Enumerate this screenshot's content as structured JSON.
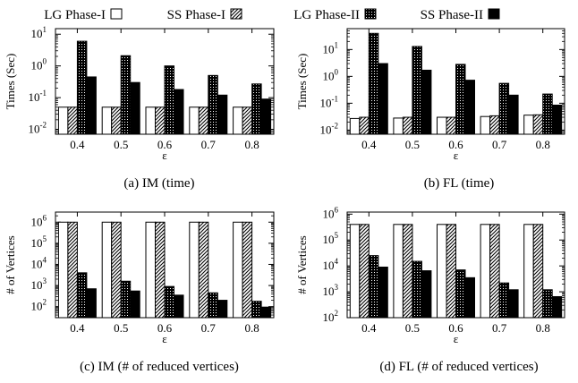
{
  "legend": {
    "entries": [
      {
        "label": "LG Phase-I",
        "pattern": "white"
      },
      {
        "label": "SS Phase-I",
        "pattern": "hatch"
      },
      {
        "label": "LG Phase-II",
        "pattern": "dense"
      },
      {
        "label": "SS Phase-II",
        "pattern": "black"
      }
    ]
  },
  "chart_data": [
    {
      "type": "bar",
      "caption": "(a)  IM (time)",
      "xlabel": "ε",
      "ylabel": "Times (Sec)",
      "yscale": "log",
      "ylim": [
        0.007,
        15
      ],
      "yticks": [
        {
          "v": 0.01,
          "b": "10",
          "e": "-2"
        },
        {
          "v": 0.1,
          "b": "10",
          "e": "-1"
        },
        {
          "v": 1,
          "b": "10",
          "e": "0"
        },
        {
          "v": 10,
          "b": "10",
          "e": "1"
        }
      ],
      "categories": [
        "0.4",
        "0.5",
        "0.6",
        "0.7",
        "0.8"
      ],
      "series": [
        {
          "name": "LG Phase-I",
          "values": [
            0.05,
            0.05,
            0.05,
            0.05,
            0.05
          ]
        },
        {
          "name": "SS Phase-I",
          "values": [
            0.05,
            0.05,
            0.05,
            0.05,
            0.05
          ]
        },
        {
          "name": "LG Phase-II",
          "values": [
            6.0,
            2.1,
            1.0,
            0.5,
            0.27
          ]
        },
        {
          "name": "SS Phase-II",
          "values": [
            0.45,
            0.3,
            0.18,
            0.12,
            0.09
          ]
        }
      ]
    },
    {
      "type": "bar",
      "caption": "(b)  FL (time)",
      "xlabel": "ε",
      "ylabel": "Times (Sec)",
      "yscale": "log",
      "ylim": [
        0.007,
        60
      ],
      "yticks": [
        {
          "v": 0.01,
          "b": "10",
          "e": "-2"
        },
        {
          "v": 0.1,
          "b": "10",
          "e": "-1"
        },
        {
          "v": 1,
          "b": "10",
          "e": "0"
        },
        {
          "v": 10,
          "b": "10",
          "e": "1"
        }
      ],
      "categories": [
        "0.4",
        "0.5",
        "0.6",
        "0.7",
        "0.8"
      ],
      "series": [
        {
          "name": "LG Phase-I",
          "values": [
            0.027,
            0.028,
            0.03,
            0.032,
            0.036
          ]
        },
        {
          "name": "SS Phase-I",
          "values": [
            0.03,
            0.03,
            0.03,
            0.034,
            0.037
          ]
        },
        {
          "name": "LG Phase-II",
          "values": [
            40,
            13,
            2.8,
            0.55,
            0.22
          ]
        },
        {
          "name": "SS Phase-II",
          "values": [
            3.0,
            1.7,
            0.72,
            0.2,
            0.085
          ]
        }
      ]
    },
    {
      "type": "bar",
      "caption": "(c)  IM (# of reduced vertices)",
      "xlabel": "ε",
      "ylabel": "# of Vertices",
      "yscale": "log",
      "ylim": [
        30,
        3000000
      ],
      "yticks": [
        {
          "v": 100,
          "b": "10",
          "e": "2"
        },
        {
          "v": 1000,
          "b": "10",
          "e": "3"
        },
        {
          "v": 10000,
          "b": "10",
          "e": "4"
        },
        {
          "v": 100000,
          "b": "10",
          "e": "5"
        },
        {
          "v": 1000000,
          "b": "10",
          "e": "6"
        }
      ],
      "categories": [
        "0.4",
        "0.5",
        "0.6",
        "0.7",
        "0.8"
      ],
      "series": [
        {
          "name": "LG Phase-I",
          "values": [
            1000000,
            1000000,
            1000000,
            1000000,
            1000000
          ]
        },
        {
          "name": "SS Phase-I",
          "values": [
            1000000,
            1000000,
            1000000,
            1000000,
            1000000
          ]
        },
        {
          "name": "LG Phase-II",
          "values": [
            4000,
            1600,
            900,
            450,
            180
          ]
        },
        {
          "name": "SS Phase-II",
          "values": [
            700,
            550,
            350,
            200,
            95
          ]
        }
      ]
    },
    {
      "type": "bar",
      "caption": "(d)  FL (# of reduced vertices)",
      "xlabel": "ε",
      "ylabel": "# of Vertices",
      "yscale": "log",
      "ylim": [
        100,
        1200000
      ],
      "yticks": [
        {
          "v": 100,
          "b": "10",
          "e": "2"
        },
        {
          "v": 1000,
          "b": "10",
          "e": "3"
        },
        {
          "v": 10000,
          "b": "10",
          "e": "4"
        },
        {
          "v": 100000,
          "b": "10",
          "e": "5"
        },
        {
          "v": 1000000,
          "b": "10",
          "e": "6"
        }
      ],
      "categories": [
        "0.4",
        "0.5",
        "0.6",
        "0.7",
        "0.8"
      ],
      "series": [
        {
          "name": "LG Phase-I",
          "values": [
            400000,
            400000,
            400000,
            400000,
            400000
          ]
        },
        {
          "name": "SS Phase-I",
          "values": [
            400000,
            400000,
            400000,
            400000,
            400000
          ]
        },
        {
          "name": "LG Phase-II",
          "values": [
            25000,
            15000,
            7000,
            2200,
            1200
          ]
        },
        {
          "name": "SS Phase-II",
          "values": [
            9000,
            6500,
            3500,
            1200,
            650
          ]
        }
      ]
    }
  ]
}
